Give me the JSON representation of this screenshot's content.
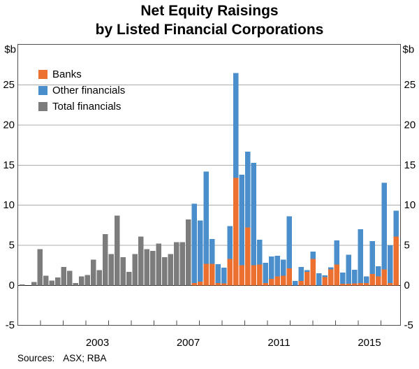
{
  "title": {
    "line1": "Net Equity Raisings",
    "line2": "by Listed Financial Corporations"
  },
  "unit_label": "$b",
  "legend": [
    {
      "label": "Banks",
      "color": "#EC7130"
    },
    {
      "label": "Other financials",
      "color": "#4A8ECB"
    },
    {
      "label": "Total financials",
      "color": "#7C7C7C"
    }
  ],
  "sources": {
    "label": "Sources:",
    "value": "ASX; RBA"
  },
  "chart_data": {
    "type": "bar",
    "stacked": true,
    "title": "Net Equity Raisings by Listed Financial Corporations",
    "ylabel": "$b",
    "ylim": [
      -5,
      30
    ],
    "yticks": [
      -5,
      0,
      5,
      10,
      15,
      20,
      25
    ],
    "grid": true,
    "legend_position": "top-left-inside",
    "x_axis": {
      "visible_year_labels": [
        "2003",
        "2007",
        "2011",
        "2015"
      ],
      "year_tick_count": 16,
      "note": "quarterly bars; unlabeled ticks mark each year"
    },
    "series": [
      {
        "name": "Banks",
        "color": "#EC7130",
        "values": [
          0,
          0,
          0,
          0,
          0,
          0,
          0,
          0,
          0,
          0,
          0,
          0,
          0,
          0,
          0,
          0,
          0,
          0,
          0,
          0,
          0,
          0,
          0,
          0,
          0,
          0,
          0,
          0,
          0,
          0.3,
          0.45,
          2.7,
          2.7,
          0.3,
          0.25,
          3.3,
          13.4,
          2.5,
          7.2,
          2.5,
          2.6,
          0.3,
          0.8,
          1.1,
          1.2,
          2.1,
          0,
          0.55,
          1.7,
          3.3,
          0,
          1.05,
          2.0,
          2.6,
          0.2,
          0.2,
          0.25,
          0.3,
          0.3,
          1.4,
          1.1,
          2.0,
          0.3,
          6.1
        ]
      },
      {
        "name": "Other financials",
        "color": "#4A8ECB",
        "values": [
          0,
          0,
          0,
          0,
          0,
          0,
          0,
          0,
          0,
          0,
          0,
          0,
          0,
          0,
          0,
          0,
          0,
          0,
          0,
          0,
          0,
          0,
          0,
          0,
          0,
          0,
          0,
          0,
          0,
          9.9,
          7.65,
          11.5,
          3.1,
          2.35,
          1.95,
          4.1,
          13.1,
          11.3,
          9.5,
          12.8,
          3.1,
          2.5,
          2.8,
          2.6,
          2.0,
          6.5,
          0.55,
          1.75,
          0.2,
          0.9,
          1.5,
          0.2,
          0.25,
          3.0,
          1.4,
          3.6,
          1.7,
          6.7,
          0.8,
          4.1,
          1.3,
          10.8,
          4.7,
          3.2
        ]
      },
      {
        "name": "Total financials",
        "color": "#7C7C7C",
        "values": [
          0.1,
          0,
          0.4,
          4.5,
          1.2,
          0.6,
          1.0,
          2.3,
          1.8,
          0.3,
          1.1,
          1.3,
          3.2,
          1.9,
          6.4,
          3.9,
          8.7,
          3.5,
          1.7,
          3.9,
          6.1,
          4.5,
          4.3,
          5.2,
          3.5,
          3.9,
          5.4,
          5.4,
          8.2,
          0,
          0,
          0,
          0,
          0,
          0,
          0,
          0,
          0,
          0,
          0,
          0,
          0,
          0,
          0,
          0,
          0,
          0,
          0,
          0,
          0,
          0,
          0,
          0,
          0,
          0,
          0,
          0,
          0,
          0,
          0,
          0,
          0,
          0,
          0
        ]
      }
    ],
    "colors": {
      "gridline": "#ABABAB",
      "zero_line": "#1A1A1A",
      "frame": "#4D4D4D"
    }
  }
}
